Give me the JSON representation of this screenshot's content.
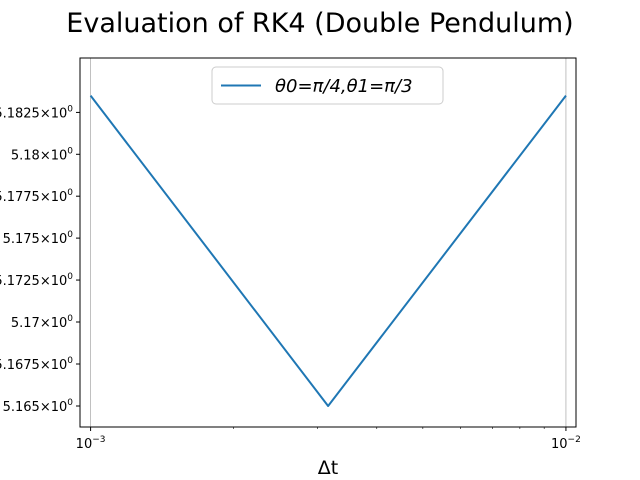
{
  "chart_data": {
    "type": "line",
    "title": "Evaluation of RK4 (Double Pendulum)",
    "xlabel": "Δt",
    "ylabel": "",
    "xscale": "log",
    "yscale": "log",
    "xlim": [
      0.00095,
      0.0105
    ],
    "ylim": [
      5.16375,
      5.18575
    ],
    "x_ticks": [
      {
        "value": 0.001,
        "base": "10",
        "exp": "−3"
      },
      {
        "value": 0.01,
        "base": "10",
        "exp": "−2"
      }
    ],
    "y_ticks": [
      {
        "value": 5.165,
        "mantissa": "5.165",
        "base": "10",
        "exp": "0"
      },
      {
        "value": 5.1675,
        "mantissa": "5.1675",
        "base": "10",
        "exp": "0"
      },
      {
        "value": 5.17,
        "mantissa": "5.17",
        "base": "10",
        "exp": "0"
      },
      {
        "value": 5.1725,
        "mantissa": "5.1725",
        "base": "10",
        "exp": "0"
      },
      {
        "value": 5.175,
        "mantissa": "5.175",
        "base": "10",
        "exp": "0"
      },
      {
        "value": 5.1775,
        "mantissa": "5.1775",
        "base": "10",
        "exp": "0"
      },
      {
        "value": 5.18,
        "mantissa": "5.18",
        "base": "10",
        "exp": "0"
      },
      {
        "value": 5.1825,
        "mantissa": "5.1825",
        "base": "10",
        "exp": "0"
      }
    ],
    "grid": {
      "x": true,
      "y": false
    },
    "legend": {
      "placement": "upper center"
    },
    "series": [
      {
        "name": "θ0=π/4,θ1=π/3",
        "color": "#1f77b4",
        "x": [
          0.001,
          0.00316,
          0.01
        ],
        "y": [
          5.1835,
          5.165,
          5.1835
        ]
      }
    ]
  }
}
